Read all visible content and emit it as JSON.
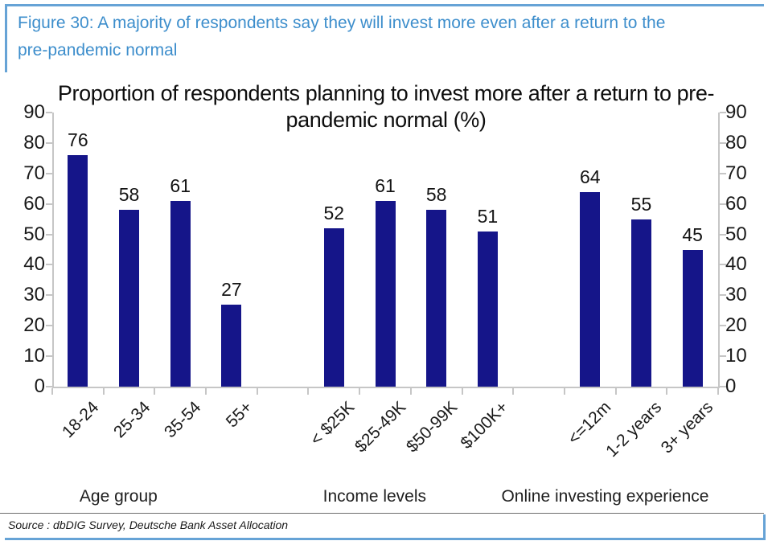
{
  "figure": {
    "caption": "Figure 30: A majority of respondents say they will invest more even after a return to the pre-pandemic normal",
    "source": "Source : dbDIG Survey, Deutsche Bank Asset Allocation"
  },
  "chart_data": {
    "type": "bar",
    "title": "Proportion of respondents planning to invest more after a return to pre-pandemic normal (%)",
    "xlabel": "",
    "ylabel": "",
    "ylim": [
      0,
      90
    ],
    "ytick_step": 10,
    "yticks_both_sides": true,
    "grid": false,
    "legend": "none",
    "value_labels": true,
    "xtick_rotation": 45,
    "bar_color": "#151589",
    "groups": [
      {
        "label": "Age group",
        "categories": [
          "18-24",
          "25-34",
          "35-54",
          "55+"
        ],
        "values": [
          76,
          58,
          61,
          27
        ]
      },
      {
        "label": "Income levels",
        "categories": [
          "< $25K",
          "$25-49K",
          "$50-99K",
          "$100K+"
        ],
        "values": [
          52,
          61,
          58,
          51
        ]
      },
      {
        "label": "Online investing experience",
        "categories": [
          "<=12m",
          "1-2 years",
          "3+ years"
        ],
        "values": [
          64,
          55,
          45
        ]
      }
    ]
  },
  "colors": {
    "accent_blue": "#3d8ecc",
    "frame_blue": "#66a3d6",
    "bar_navy": "#151589",
    "axis_gray": "#c6c6c6"
  }
}
